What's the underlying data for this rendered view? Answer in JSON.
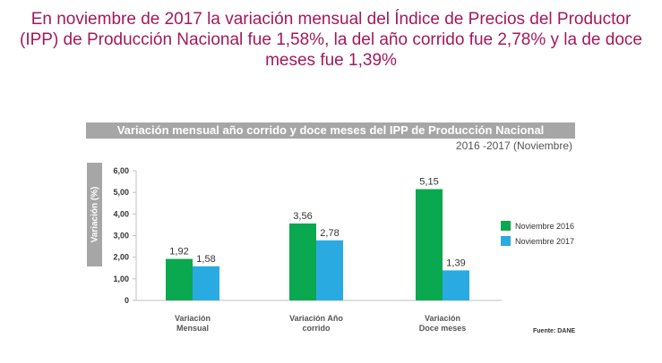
{
  "headline": {
    "line1": "En noviembre de 2017 la variación mensual del Índice de Precios del Productor",
    "line2": "(IPP) de Producción Nacional fue 1,58%, la del año corrido fue 2,78% y la de doce",
    "line3": "meses fue 1,39%"
  },
  "source": "Fuente: DANE",
  "colors": {
    "headline": "#a3195b",
    "series_2016": "#0aa84f",
    "series_2017": "#29abe2",
    "title_bar": "#a6a6a6"
  },
  "chart_data": {
    "type": "bar",
    "title": "Variación mensual año corrido y doce meses del IPP de Producción Nacional",
    "subtitle": "2016 -2017 (Noviembre)",
    "ylabel": "Variación  (%)",
    "categories": [
      [
        "Variación",
        "Mensual"
      ],
      [
        "Variación Año",
        "corrido"
      ],
      [
        "Variación",
        "Doce meses"
      ]
    ],
    "series": [
      {
        "name": "Noviembre 2016",
        "values": [
          1.92,
          3.56,
          5.15
        ],
        "labels": [
          "1,92",
          "3,56",
          "5,15"
        ]
      },
      {
        "name": "Noviembre 2017",
        "values": [
          1.58,
          2.78,
          1.39
        ],
        "labels": [
          "1,58",
          "2,78",
          "1,39"
        ]
      }
    ],
    "ylim": [
      0,
      6
    ],
    "yticks": [
      "0",
      "1,00",
      "2,00",
      "3,00",
      "4,00",
      "5,00",
      "6,00"
    ],
    "legend_position": "right",
    "grid": false
  }
}
